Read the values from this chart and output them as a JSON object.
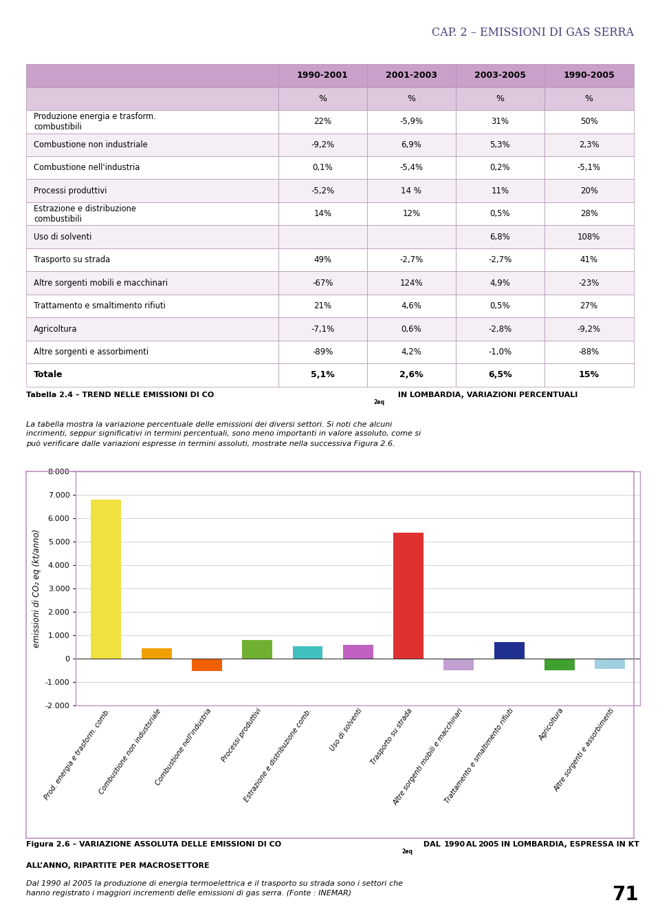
{
  "page_title": "Cap. 2 – Emissioni di gas serra",
  "header_bg": "#d4a8d4",
  "table_header_bg": "#c9a0c9",
  "table_subheader_bg": "#ddc8dd",
  "table_row_bg1": "#ffffff",
  "table_row_bg2": "#f5eef5",
  "table_border": "#b090b0",
  "col_headers": [
    "",
    "1990-2001",
    "2001-2003",
    "2003-2005",
    "1990-2005"
  ],
  "col_subheaders": [
    "",
    "%",
    "%",
    "%",
    "%"
  ],
  "rows": [
    [
      "Produzione energia e trasform.\ncombustibili",
      "22%",
      "-5,9%",
      "31%",
      "50%"
    ],
    [
      "Combustione non industriale",
      "-9,2%",
      "6,9%",
      "5,3%",
      "2,3%"
    ],
    [
      "Combustione nell'industria",
      "0,1%",
      "-5,4%",
      "0,2%",
      "-5,1%"
    ],
    [
      "Processi produttivi",
      "-5,2%",
      "14 %",
      "11%",
      "20%"
    ],
    [
      "Estrazione e distribuzione\ncombustibili",
      "14%",
      "12%",
      "0,5%",
      "28%"
    ],
    [
      "Uso di solventi",
      "",
      "",
      "6,8%",
      "108%"
    ],
    [
      "Trasporto su strada",
      "49%",
      "-2,7%",
      "-2,7%",
      "41%"
    ],
    [
      "Altre sorgenti mobili e macchinari",
      "-67%",
      "124%",
      "4,9%",
      "-23%"
    ],
    [
      "Trattamento e smaltimento rifiuti",
      "21%",
      "4,6%",
      "0,5%",
      "27%"
    ],
    [
      "Agricoltura",
      "-7,1%",
      "0,6%",
      "-2,8%",
      "-9,2%"
    ],
    [
      "Altre sorgenti e assorbimenti",
      "-89%",
      "4,2%",
      "-1,0%",
      "-88%"
    ]
  ],
  "totale_row": [
    "Totale",
    "5,1%",
    "2,6%",
    "6,5%",
    "15%"
  ],
  "caption_body": "La tabella mostra la variazione percentuale delle emissioni dei diversi settori. Si noti che alcuni\nincrimenti, seppur significativi in termini percentuali, sono meno importanti in valore assoluto, come si\npuò verificare dalle variazioni espresse in termini assoluti, mostrate nella successiva Figura 2.6.",
  "bar_categories": [
    "Prod. energia e trasform. comb.",
    "Combustione non industsriale",
    "Combustione nell'industria",
    "Processi produttivi",
    "Estrazione e distribuzione comb.",
    "Uso di solventi",
    "Trasporto su strada",
    "Altre sorgenti mobili e macchinari",
    "Trattamento e smaltimento rifiuti",
    "Agricoltura",
    "Altre sorgenti e assorbimenti"
  ],
  "bar_values": [
    6800,
    430,
    -530,
    800,
    530,
    580,
    5400,
    -490,
    720,
    -500,
    -430
  ],
  "bar_colors": [
    "#f0e040",
    "#f0a000",
    "#f06000",
    "#70b030",
    "#40c0c0",
    "#c060c0",
    "#e03030",
    "#c0a0d0",
    "#203090",
    "#40a030",
    "#a0d0e0"
  ],
  "ylabel": "emissioni di CO₂ eq (kt/anno)",
  "ylim": [
    -2000,
    8000
  ],
  "yticks": [
    -2000,
    -1000,
    0,
    1000,
    2000,
    3000,
    4000,
    5000,
    6000,
    7000,
    8000
  ],
  "fig_caption_body": "Dal 1990 al 2005 la produzione di energia termoelettrica e il trasporto su strada sono i settori che\nhanno registrato i maggiori incrementi delle emissioni di gas serra. (Fonte : INEMAR)",
  "page_number": "71",
  "background_color": "#ffffff",
  "plot_border_color": "#c090c0",
  "plot_bg": "#ffffff"
}
